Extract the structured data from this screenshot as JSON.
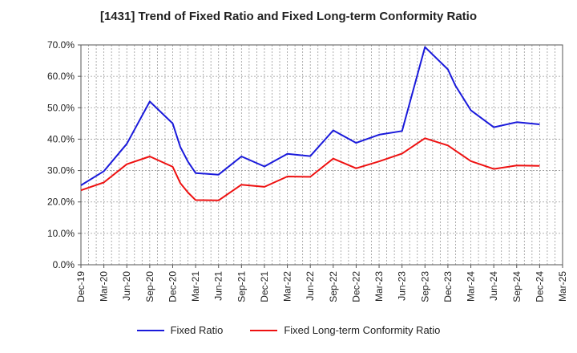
{
  "chart_data": {
    "type": "line",
    "title": "[1431]  Trend of Fixed Ratio and Fixed Long-term Conformity Ratio",
    "xlabel": "",
    "ylabel": "",
    "ylim": [
      0,
      70
    ],
    "y_tick_labels": [
      "0.0%",
      "10.0%",
      "20.0%",
      "30.0%",
      "40.0%",
      "50.0%",
      "60.0%",
      "70.0%"
    ],
    "y_ticks": [
      0,
      10,
      20,
      30,
      40,
      50,
      60,
      70
    ],
    "x_tick_labels": [
      "Dec-19",
      "Mar-20",
      "Jun-20",
      "Sep-20",
      "Dec-20",
      "Mar-21",
      "Jun-21",
      "Sep-21",
      "Dec-21",
      "Mar-22",
      "Jun-22",
      "Sep-22",
      "Dec-22",
      "Mar-23",
      "Jun-23",
      "Sep-23",
      "Dec-23",
      "Mar-24",
      "Jun-24",
      "Sep-24",
      "Dec-24",
      "Mar-25"
    ],
    "grid": true,
    "legend_position": "bottom",
    "series": [
      {
        "name": "Fixed Ratio",
        "color": "#1a1adb",
        "points": [
          [
            "Dec-19",
            25.3
          ],
          [
            "Mar-20",
            29.8
          ],
          [
            "Jun-20",
            38.5
          ],
          [
            "Sep-20",
            52.0
          ],
          [
            "Dec-20",
            45.0
          ],
          [
            "Jan-21",
            37.5
          ],
          [
            "Feb-21",
            32.8
          ],
          [
            "Mar-21",
            29.2
          ],
          [
            "Jun-21",
            28.7
          ],
          [
            "Sep-21",
            34.5
          ],
          [
            "Dec-21",
            31.3
          ],
          [
            "Mar-22",
            35.3
          ],
          [
            "Jun-22",
            34.6
          ],
          [
            "Sep-22",
            42.8
          ],
          [
            "Dec-22",
            38.8
          ],
          [
            "Mar-23",
            41.4
          ],
          [
            "Jun-23",
            42.6
          ],
          [
            "Sep-23",
            69.3
          ],
          [
            "Dec-23",
            62.2
          ],
          [
            "Jan-24",
            57.0
          ],
          [
            "Mar-24",
            49.2
          ],
          [
            "Jun-24",
            43.8
          ],
          [
            "Sep-24",
            45.4
          ],
          [
            "Dec-24",
            44.7
          ]
        ]
      },
      {
        "name": "Fixed Long-term Conformity Ratio",
        "color": "#ee1111",
        "points": [
          [
            "Dec-19",
            23.7
          ],
          [
            "Mar-20",
            26.2
          ],
          [
            "Jun-20",
            32.0
          ],
          [
            "Sep-20",
            34.5
          ],
          [
            "Dec-20",
            31.2
          ],
          [
            "Jan-21",
            26.0
          ],
          [
            "Feb-21",
            23.0
          ],
          [
            "Mar-21",
            20.6
          ],
          [
            "Jun-21",
            20.5
          ],
          [
            "Sep-21",
            25.5
          ],
          [
            "Dec-21",
            24.8
          ],
          [
            "Mar-22",
            28.1
          ],
          [
            "Jun-22",
            28.0
          ],
          [
            "Sep-22",
            33.8
          ],
          [
            "Dec-22",
            30.7
          ],
          [
            "Mar-23",
            32.9
          ],
          [
            "Jun-23",
            35.4
          ],
          [
            "Sep-23",
            40.3
          ],
          [
            "Dec-23",
            38.0
          ],
          [
            "Mar-24",
            33.0
          ],
          [
            "Jun-24",
            30.5
          ],
          [
            "Sep-24",
            31.6
          ],
          [
            "Dec-24",
            31.5
          ]
        ]
      }
    ]
  }
}
